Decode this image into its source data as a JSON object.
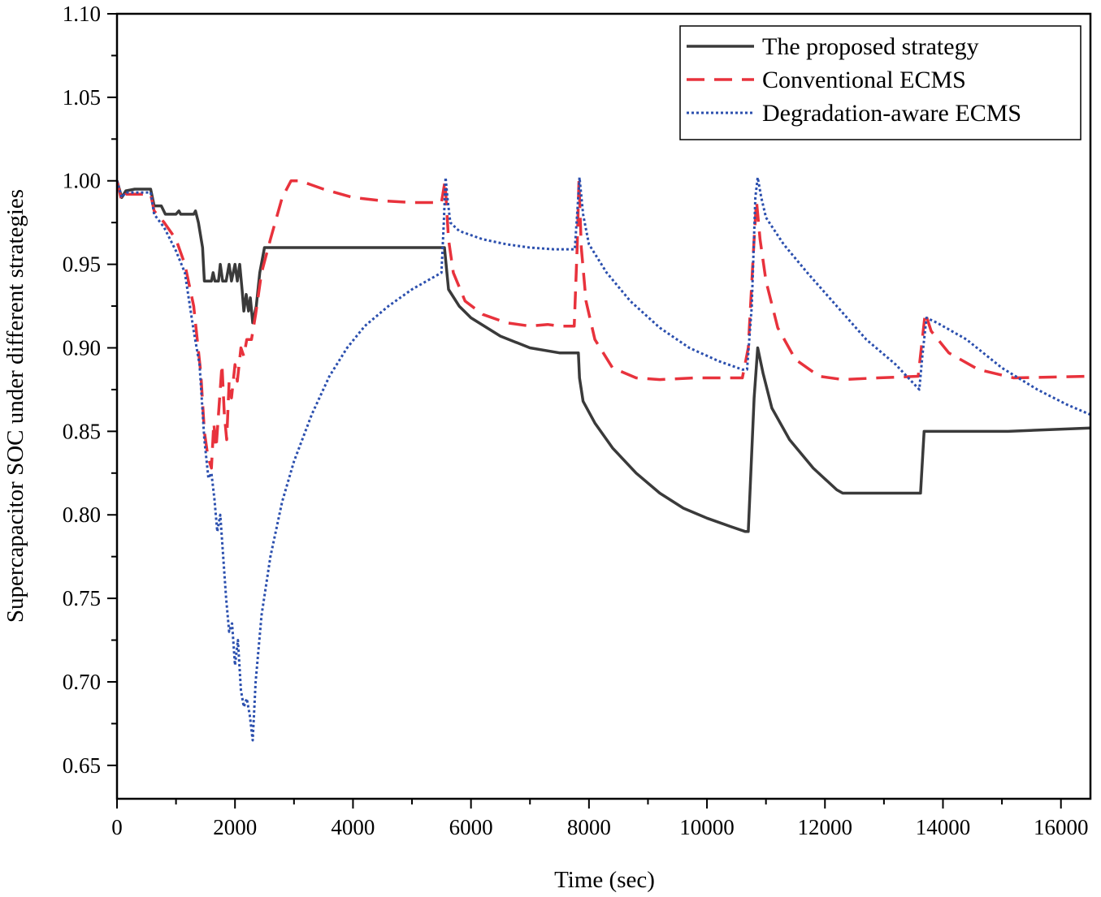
{
  "chart_data": {
    "type": "line",
    "title": "",
    "xlabel": "Time (sec)",
    "ylabel": "Supercapacitor SOC under different strategies",
    "xlim": [
      0,
      16500
    ],
    "ylim": [
      0.63,
      1.1
    ],
    "xticks": [
      0,
      2000,
      4000,
      6000,
      8000,
      10000,
      12000,
      14000,
      16000
    ],
    "xtick_labels": [
      "0",
      "2000",
      "4000",
      "6000",
      "8000",
      "10000",
      "12000",
      "14000",
      "16000"
    ],
    "yticks": [
      0.65,
      0.7,
      0.75,
      0.8,
      0.85,
      0.9,
      0.95,
      1.0,
      1.05,
      1.1
    ],
    "ytick_labels": [
      "0.65",
      "0.70",
      "0.75",
      "0.80",
      "0.85",
      "0.90",
      "0.95",
      "1.00",
      "1.05",
      "1.10"
    ],
    "grid": false,
    "legend_position": "top-right",
    "series": [
      {
        "name": "The proposed strategy",
        "color": "#3a3a3a",
        "style": "solid",
        "points": [
          [
            0,
            1.0
          ],
          [
            80,
            0.99
          ],
          [
            150,
            0.994
          ],
          [
            300,
            0.995
          ],
          [
            570,
            0.995
          ],
          [
            630,
            0.985
          ],
          [
            750,
            0.985
          ],
          [
            820,
            0.98
          ],
          [
            1000,
            0.98
          ],
          [
            1050,
            0.982
          ],
          [
            1080,
            0.98
          ],
          [
            1300,
            0.98
          ],
          [
            1330,
            0.982
          ],
          [
            1380,
            0.975
          ],
          [
            1450,
            0.96
          ],
          [
            1480,
            0.94
          ],
          [
            1600,
            0.94
          ],
          [
            1630,
            0.945
          ],
          [
            1660,
            0.94
          ],
          [
            1720,
            0.94
          ],
          [
            1750,
            0.95
          ],
          [
            1790,
            0.94
          ],
          [
            1850,
            0.94
          ],
          [
            1900,
            0.95
          ],
          [
            1940,
            0.94
          ],
          [
            2000,
            0.95
          ],
          [
            2040,
            0.94
          ],
          [
            2080,
            0.95
          ],
          [
            2120,
            0.935
          ],
          [
            2150,
            0.922
          ],
          [
            2190,
            0.932
          ],
          [
            2230,
            0.922
          ],
          [
            2260,
            0.93
          ],
          [
            2300,
            0.915
          ],
          [
            2360,
            0.925
          ],
          [
            2420,
            0.945
          ],
          [
            2500,
            0.96
          ],
          [
            5550,
            0.96
          ],
          [
            5620,
            0.935
          ],
          [
            5800,
            0.925
          ],
          [
            6000,
            0.918
          ],
          [
            6500,
            0.907
          ],
          [
            7000,
            0.9
          ],
          [
            7500,
            0.897
          ],
          [
            7820,
            0.897
          ],
          [
            7840,
            0.882
          ],
          [
            7900,
            0.868
          ],
          [
            8100,
            0.855
          ],
          [
            8400,
            0.84
          ],
          [
            8800,
            0.825
          ],
          [
            9200,
            0.813
          ],
          [
            9600,
            0.804
          ],
          [
            10000,
            0.798
          ],
          [
            10400,
            0.793
          ],
          [
            10650,
            0.79
          ],
          [
            10700,
            0.79
          ],
          [
            10800,
            0.87
          ],
          [
            10860,
            0.9
          ],
          [
            10950,
            0.885
          ],
          [
            11100,
            0.864
          ],
          [
            11400,
            0.845
          ],
          [
            11800,
            0.828
          ],
          [
            12200,
            0.815
          ],
          [
            12300,
            0.813
          ],
          [
            13620,
            0.813
          ],
          [
            13680,
            0.85
          ],
          [
            15100,
            0.85
          ],
          [
            16500,
            0.852
          ]
        ]
      },
      {
        "name": "Conventional ECMS",
        "color": "#e8323c",
        "style": "dashed",
        "points": [
          [
            0,
            1.0
          ],
          [
            80,
            0.988
          ],
          [
            150,
            0.992
          ],
          [
            300,
            0.992
          ],
          [
            570,
            0.992
          ],
          [
            630,
            0.982
          ],
          [
            800,
            0.975
          ],
          [
            1000,
            0.965
          ],
          [
            1150,
            0.95
          ],
          [
            1300,
            0.925
          ],
          [
            1420,
            0.885
          ],
          [
            1480,
            0.85
          ],
          [
            1540,
            0.835
          ],
          [
            1600,
            0.828
          ],
          [
            1640,
            0.855
          ],
          [
            1680,
            0.84
          ],
          [
            1740,
            0.87
          ],
          [
            1780,
            0.89
          ],
          [
            1820,
            0.86
          ],
          [
            1860,
            0.845
          ],
          [
            1900,
            0.88
          ],
          [
            1940,
            0.87
          ],
          [
            2000,
            0.89
          ],
          [
            2040,
            0.88
          ],
          [
            2100,
            0.9
          ],
          [
            2150,
            0.895
          ],
          [
            2200,
            0.905
          ],
          [
            2280,
            0.905
          ],
          [
            2350,
            0.92
          ],
          [
            2450,
            0.945
          ],
          [
            2600,
            0.965
          ],
          [
            2800,
            0.99
          ],
          [
            2950,
            1.0
          ],
          [
            3100,
            1.0
          ],
          [
            3500,
            0.995
          ],
          [
            4000,
            0.99
          ],
          [
            4500,
            0.988
          ],
          [
            5000,
            0.987
          ],
          [
            5500,
            0.987
          ],
          [
            5560,
            1.0
          ],
          [
            5620,
            0.965
          ],
          [
            5700,
            0.945
          ],
          [
            5900,
            0.928
          ],
          [
            6200,
            0.92
          ],
          [
            6600,
            0.915
          ],
          [
            7000,
            0.913
          ],
          [
            7300,
            0.914
          ],
          [
            7500,
            0.913
          ],
          [
            7750,
            0.913
          ],
          [
            7800,
            0.96
          ],
          [
            7830,
            1.0
          ],
          [
            7870,
            0.96
          ],
          [
            7950,
            0.928
          ],
          [
            8100,
            0.905
          ],
          [
            8400,
            0.888
          ],
          [
            8800,
            0.882
          ],
          [
            9200,
            0.881
          ],
          [
            9800,
            0.882
          ],
          [
            10200,
            0.882
          ],
          [
            10600,
            0.882
          ],
          [
            10700,
            0.9
          ],
          [
            10800,
            0.965
          ],
          [
            10840,
            0.988
          ],
          [
            10900,
            0.965
          ],
          [
            11000,
            0.94
          ],
          [
            11200,
            0.912
          ],
          [
            11500,
            0.893
          ],
          [
            11900,
            0.883
          ],
          [
            12300,
            0.881
          ],
          [
            12900,
            0.882
          ],
          [
            13580,
            0.883
          ],
          [
            13700,
            0.921
          ],
          [
            13800,
            0.91
          ],
          [
            14100,
            0.897
          ],
          [
            14600,
            0.887
          ],
          [
            15200,
            0.882
          ],
          [
            16500,
            0.883
          ]
        ]
      },
      {
        "name": "Degradation-aware ECMS",
        "color": "#2b4fae",
        "style": "dotted",
        "points": [
          [
            0,
            1.0
          ],
          [
            80,
            0.99
          ],
          [
            150,
            0.993
          ],
          [
            300,
            0.993
          ],
          [
            570,
            0.993
          ],
          [
            630,
            0.98
          ],
          [
            800,
            0.972
          ],
          [
            1000,
            0.958
          ],
          [
            1150,
            0.945
          ],
          [
            1300,
            0.91
          ],
          [
            1400,
            0.89
          ],
          [
            1480,
            0.845
          ],
          [
            1550,
            0.822
          ],
          [
            1600,
            0.825
          ],
          [
            1650,
            0.81
          ],
          [
            1700,
            0.79
          ],
          [
            1750,
            0.8
          ],
          [
            1800,
            0.775
          ],
          [
            1850,
            0.75
          ],
          [
            1900,
            0.73
          ],
          [
            1950,
            0.735
          ],
          [
            2000,
            0.71
          ],
          [
            2050,
            0.725
          ],
          [
            2100,
            0.695
          ],
          [
            2150,
            0.685
          ],
          [
            2200,
            0.69
          ],
          [
            2250,
            0.68
          ],
          [
            2300,
            0.665
          ],
          [
            2350,
            0.7
          ],
          [
            2450,
            0.74
          ],
          [
            2600,
            0.775
          ],
          [
            2800,
            0.808
          ],
          [
            3000,
            0.832
          ],
          [
            3300,
            0.86
          ],
          [
            3600,
            0.883
          ],
          [
            3900,
            0.9
          ],
          [
            4200,
            0.913
          ],
          [
            4600,
            0.925
          ],
          [
            5000,
            0.935
          ],
          [
            5400,
            0.943
          ],
          [
            5500,
            0.945
          ],
          [
            5540,
            0.975
          ],
          [
            5570,
            1.002
          ],
          [
            5600,
            0.99
          ],
          [
            5650,
            0.975
          ],
          [
            5800,
            0.97
          ],
          [
            6200,
            0.965
          ],
          [
            6600,
            0.962
          ],
          [
            7000,
            0.96
          ],
          [
            7400,
            0.959
          ],
          [
            7760,
            0.959
          ],
          [
            7800,
            0.98
          ],
          [
            7840,
            1.002
          ],
          [
            7900,
            0.98
          ],
          [
            8000,
            0.962
          ],
          [
            8300,
            0.945
          ],
          [
            8700,
            0.928
          ],
          [
            9200,
            0.912
          ],
          [
            9700,
            0.9
          ],
          [
            10200,
            0.892
          ],
          [
            10600,
            0.887
          ],
          [
            10680,
            0.887
          ],
          [
            10760,
            0.925
          ],
          [
            10820,
            0.99
          ],
          [
            10860,
            1.002
          ],
          [
            10920,
            0.99
          ],
          [
            11000,
            0.978
          ],
          [
            11300,
            0.962
          ],
          [
            11700,
            0.945
          ],
          [
            12200,
            0.925
          ],
          [
            12700,
            0.905
          ],
          [
            13200,
            0.89
          ],
          [
            13600,
            0.875
          ],
          [
            13650,
            0.895
          ],
          [
            13720,
            0.918
          ],
          [
            13900,
            0.915
          ],
          [
            14400,
            0.905
          ],
          [
            15000,
            0.888
          ],
          [
            15600,
            0.875
          ],
          [
            16100,
            0.866
          ],
          [
            16500,
            0.86
          ]
        ]
      }
    ]
  }
}
